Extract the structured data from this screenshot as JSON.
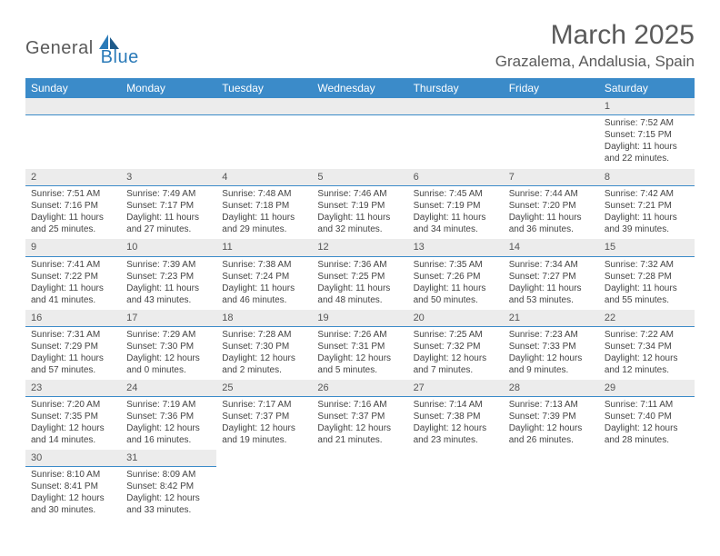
{
  "brand": {
    "part1": "General",
    "part2": "Blue"
  },
  "title": "March 2025",
  "location": "Grazalema, Andalusia, Spain",
  "colors": {
    "header_bg": "#3b8bc9",
    "header_text": "#ffffff",
    "daynum_bg": "#ececec",
    "divider": "#3b8bc9",
    "text": "#444444",
    "title_color": "#5a5a5a",
    "brand_gray": "#5a5a5a",
    "brand_blue": "#2a7ab8"
  },
  "daysOfWeek": [
    "Sunday",
    "Monday",
    "Tuesday",
    "Wednesday",
    "Thursday",
    "Friday",
    "Saturday"
  ],
  "weeks": [
    [
      null,
      null,
      null,
      null,
      null,
      null,
      {
        "n": "1",
        "sr": "Sunrise: 7:52 AM",
        "ss": "Sunset: 7:15 PM",
        "dl1": "Daylight: 11 hours",
        "dl2": "and 22 minutes."
      }
    ],
    [
      {
        "n": "2",
        "sr": "Sunrise: 7:51 AM",
        "ss": "Sunset: 7:16 PM",
        "dl1": "Daylight: 11 hours",
        "dl2": "and 25 minutes."
      },
      {
        "n": "3",
        "sr": "Sunrise: 7:49 AM",
        "ss": "Sunset: 7:17 PM",
        "dl1": "Daylight: 11 hours",
        "dl2": "and 27 minutes."
      },
      {
        "n": "4",
        "sr": "Sunrise: 7:48 AM",
        "ss": "Sunset: 7:18 PM",
        "dl1": "Daylight: 11 hours",
        "dl2": "and 29 minutes."
      },
      {
        "n": "5",
        "sr": "Sunrise: 7:46 AM",
        "ss": "Sunset: 7:19 PM",
        "dl1": "Daylight: 11 hours",
        "dl2": "and 32 minutes."
      },
      {
        "n": "6",
        "sr": "Sunrise: 7:45 AM",
        "ss": "Sunset: 7:19 PM",
        "dl1": "Daylight: 11 hours",
        "dl2": "and 34 minutes."
      },
      {
        "n": "7",
        "sr": "Sunrise: 7:44 AM",
        "ss": "Sunset: 7:20 PM",
        "dl1": "Daylight: 11 hours",
        "dl2": "and 36 minutes."
      },
      {
        "n": "8",
        "sr": "Sunrise: 7:42 AM",
        "ss": "Sunset: 7:21 PM",
        "dl1": "Daylight: 11 hours",
        "dl2": "and 39 minutes."
      }
    ],
    [
      {
        "n": "9",
        "sr": "Sunrise: 7:41 AM",
        "ss": "Sunset: 7:22 PM",
        "dl1": "Daylight: 11 hours",
        "dl2": "and 41 minutes."
      },
      {
        "n": "10",
        "sr": "Sunrise: 7:39 AM",
        "ss": "Sunset: 7:23 PM",
        "dl1": "Daylight: 11 hours",
        "dl2": "and 43 minutes."
      },
      {
        "n": "11",
        "sr": "Sunrise: 7:38 AM",
        "ss": "Sunset: 7:24 PM",
        "dl1": "Daylight: 11 hours",
        "dl2": "and 46 minutes."
      },
      {
        "n": "12",
        "sr": "Sunrise: 7:36 AM",
        "ss": "Sunset: 7:25 PM",
        "dl1": "Daylight: 11 hours",
        "dl2": "and 48 minutes."
      },
      {
        "n": "13",
        "sr": "Sunrise: 7:35 AM",
        "ss": "Sunset: 7:26 PM",
        "dl1": "Daylight: 11 hours",
        "dl2": "and 50 minutes."
      },
      {
        "n": "14",
        "sr": "Sunrise: 7:34 AM",
        "ss": "Sunset: 7:27 PM",
        "dl1": "Daylight: 11 hours",
        "dl2": "and 53 minutes."
      },
      {
        "n": "15",
        "sr": "Sunrise: 7:32 AM",
        "ss": "Sunset: 7:28 PM",
        "dl1": "Daylight: 11 hours",
        "dl2": "and 55 minutes."
      }
    ],
    [
      {
        "n": "16",
        "sr": "Sunrise: 7:31 AM",
        "ss": "Sunset: 7:29 PM",
        "dl1": "Daylight: 11 hours",
        "dl2": "and 57 minutes."
      },
      {
        "n": "17",
        "sr": "Sunrise: 7:29 AM",
        "ss": "Sunset: 7:30 PM",
        "dl1": "Daylight: 12 hours",
        "dl2": "and 0 minutes."
      },
      {
        "n": "18",
        "sr": "Sunrise: 7:28 AM",
        "ss": "Sunset: 7:30 PM",
        "dl1": "Daylight: 12 hours",
        "dl2": "and 2 minutes."
      },
      {
        "n": "19",
        "sr": "Sunrise: 7:26 AM",
        "ss": "Sunset: 7:31 PM",
        "dl1": "Daylight: 12 hours",
        "dl2": "and 5 minutes."
      },
      {
        "n": "20",
        "sr": "Sunrise: 7:25 AM",
        "ss": "Sunset: 7:32 PM",
        "dl1": "Daylight: 12 hours",
        "dl2": "and 7 minutes."
      },
      {
        "n": "21",
        "sr": "Sunrise: 7:23 AM",
        "ss": "Sunset: 7:33 PM",
        "dl1": "Daylight: 12 hours",
        "dl2": "and 9 minutes."
      },
      {
        "n": "22",
        "sr": "Sunrise: 7:22 AM",
        "ss": "Sunset: 7:34 PM",
        "dl1": "Daylight: 12 hours",
        "dl2": "and 12 minutes."
      }
    ],
    [
      {
        "n": "23",
        "sr": "Sunrise: 7:20 AM",
        "ss": "Sunset: 7:35 PM",
        "dl1": "Daylight: 12 hours",
        "dl2": "and 14 minutes."
      },
      {
        "n": "24",
        "sr": "Sunrise: 7:19 AM",
        "ss": "Sunset: 7:36 PM",
        "dl1": "Daylight: 12 hours",
        "dl2": "and 16 minutes."
      },
      {
        "n": "25",
        "sr": "Sunrise: 7:17 AM",
        "ss": "Sunset: 7:37 PM",
        "dl1": "Daylight: 12 hours",
        "dl2": "and 19 minutes."
      },
      {
        "n": "26",
        "sr": "Sunrise: 7:16 AM",
        "ss": "Sunset: 7:37 PM",
        "dl1": "Daylight: 12 hours",
        "dl2": "and 21 minutes."
      },
      {
        "n": "27",
        "sr": "Sunrise: 7:14 AM",
        "ss": "Sunset: 7:38 PM",
        "dl1": "Daylight: 12 hours",
        "dl2": "and 23 minutes."
      },
      {
        "n": "28",
        "sr": "Sunrise: 7:13 AM",
        "ss": "Sunset: 7:39 PM",
        "dl1": "Daylight: 12 hours",
        "dl2": "and 26 minutes."
      },
      {
        "n": "29",
        "sr": "Sunrise: 7:11 AM",
        "ss": "Sunset: 7:40 PM",
        "dl1": "Daylight: 12 hours",
        "dl2": "and 28 minutes."
      }
    ],
    [
      {
        "n": "30",
        "sr": "Sunrise: 8:10 AM",
        "ss": "Sunset: 8:41 PM",
        "dl1": "Daylight: 12 hours",
        "dl2": "and 30 minutes."
      },
      {
        "n": "31",
        "sr": "Sunrise: 8:09 AM",
        "ss": "Sunset: 8:42 PM",
        "dl1": "Daylight: 12 hours",
        "dl2": "and 33 minutes."
      },
      null,
      null,
      null,
      null,
      null
    ]
  ]
}
